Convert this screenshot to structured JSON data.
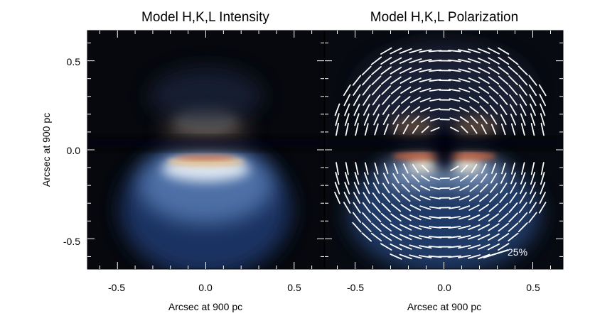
{
  "chart_data": [
    {
      "type": "heatmap",
      "title": "Model H,K,L Intensity",
      "xlabel": "Arcsec at 900 pc",
      "ylabel": "Arcsec at 900 pc",
      "xlim": [
        -0.67,
        0.67
      ],
      "ylim": [
        -0.67,
        0.67
      ],
      "xticks": [
        -0.5,
        0.0,
        0.5
      ],
      "xtick_labels": [
        "-0.5",
        "0.0",
        "0.5"
      ],
      "yticks": [
        -0.5,
        0.0,
        0.5
      ],
      "ytick_labels": [
        "-0.5",
        "0.0",
        "0.5"
      ],
      "grid": false,
      "features": [
        {
          "name": "upper lobe",
          "center": [
            0.0,
            0.2
          ],
          "brightness": 0.35
        },
        {
          "name": "lower lobe",
          "center": [
            0.0,
            -0.08
          ],
          "brightness": 1.0
        },
        {
          "name": "dark lane",
          "center": [
            0.0,
            0.1
          ]
        }
      ]
    },
    {
      "type": "heatmap",
      "title": "Model H,K,L Polarization",
      "xlabel": "Arcsec at 900 pc",
      "xlim": [
        -0.67,
        0.67
      ],
      "ylim": [
        -0.67,
        0.67
      ],
      "xticks": [
        -0.5,
        0.0,
        0.5
      ],
      "xtick_labels": [
        "-0.5",
        "0.0",
        "0.5"
      ],
      "yticks": [
        -0.5,
        0.0,
        0.5
      ],
      "grid": false,
      "overlay": "polarization vectors, centro-symmetric pattern",
      "vector_scale_label": "25%",
      "vector_scale_value": 25
    }
  ],
  "colors": {
    "background": "#ffffff",
    "axes": "#000000",
    "vectors": "#ffffff"
  }
}
